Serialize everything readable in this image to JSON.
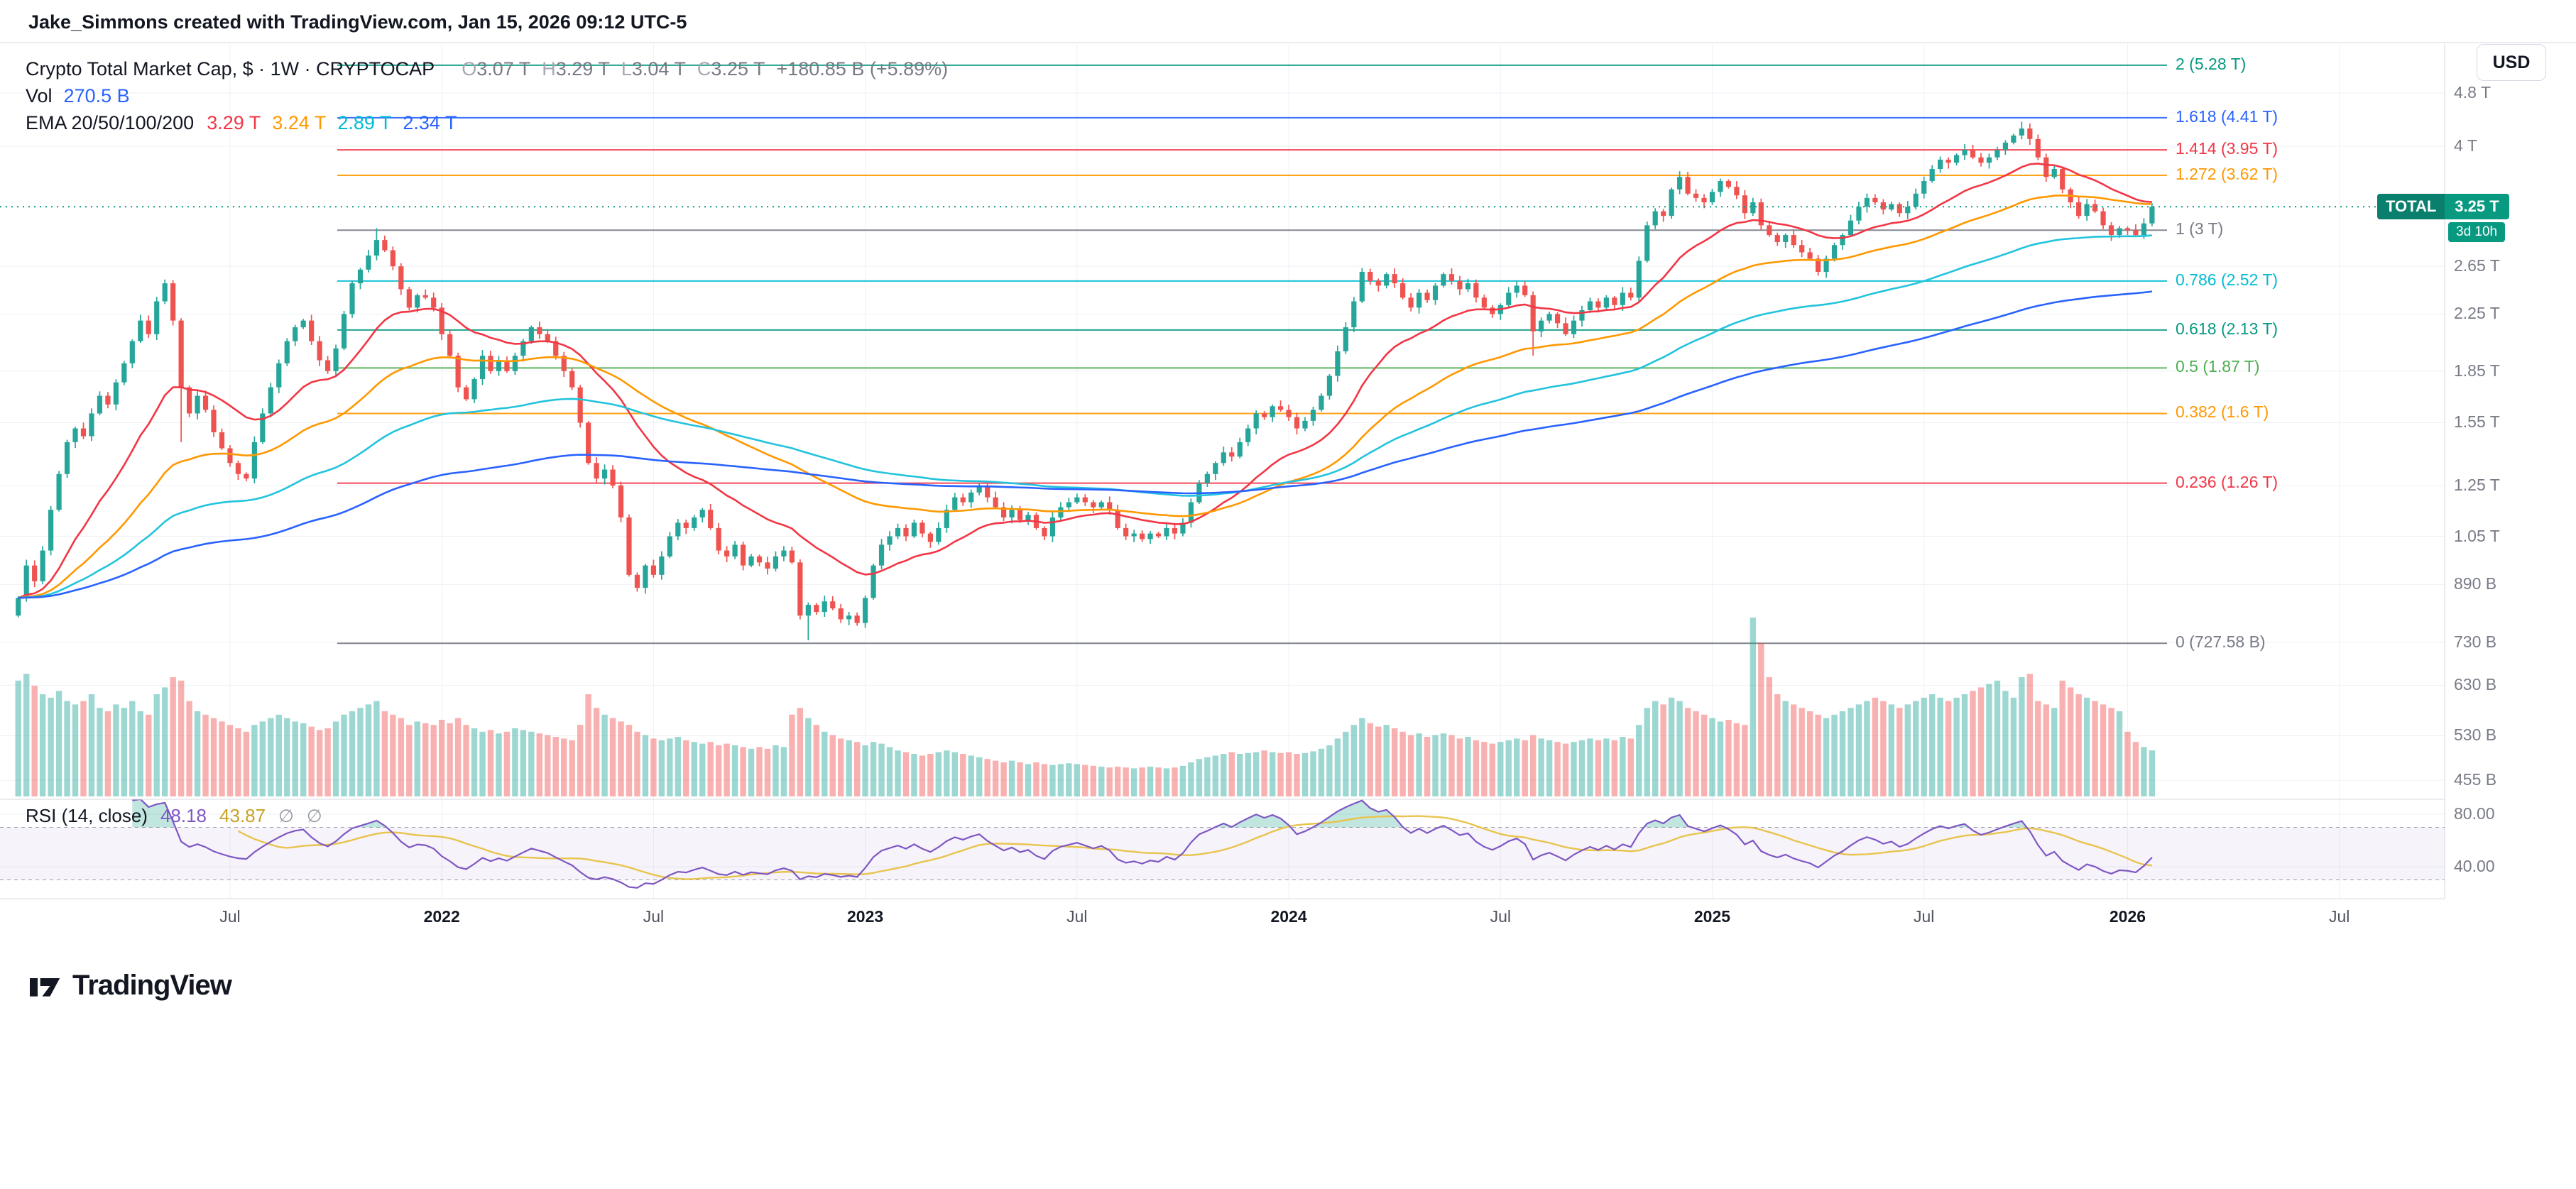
{
  "meta": {
    "attribution": "Jake_Simmons created with TradingView.com, Jan 15, 2026 09:12 UTC-5"
  },
  "legend": {
    "title": "Crypto Total Market Cap, $ · 1W · CRYPTOCAP",
    "ohlc": {
      "o_label": "O",
      "o": "3.07 T",
      "h_label": "H",
      "h": "3.29 T",
      "l_label": "L",
      "l": "3.04 T",
      "c_label": "C",
      "c": "3.25 T",
      "change": "+180.85 B (+5.89%)"
    },
    "vol_label": "Vol",
    "vol_value": "270.5 B",
    "ema_label": "EMA 20/50/100/200",
    "ema_values": [
      {
        "text": "3.29 T",
        "color": "#f23645"
      },
      {
        "text": "3.24 T",
        "color": "#ff9800"
      },
      {
        "text": "2.89 T",
        "color": "#00bcd4"
      },
      {
        "text": "2.34 T",
        "color": "#2962ff"
      }
    ]
  },
  "price_axis": {
    "currency_button": "USD",
    "ticks": [
      {
        "label": "4.8 T",
        "value": 4.8
      },
      {
        "label": "4 T",
        "value": 4.0
      },
      {
        "label": "2.65 T",
        "value": 2.65
      },
      {
        "label": "2.25 T",
        "value": 2.25
      },
      {
        "label": "1.85 T",
        "value": 1.85
      },
      {
        "label": "1.55 T",
        "value": 1.55
      },
      {
        "label": "1.25 T",
        "value": 1.25
      },
      {
        "label": "1.05 T",
        "value": 1.05
      },
      {
        "label": "890 B",
        "value": 0.89
      },
      {
        "label": "730 B",
        "value": 0.73
      },
      {
        "label": "630 B",
        "value": 0.63
      },
      {
        "label": "530 B",
        "value": 0.53
      },
      {
        "label": "455 B",
        "value": 0.455
      }
    ],
    "current": {
      "symbol_label": "TOTAL",
      "price": "3.25 T",
      "countdown": "3d 10h",
      "value": 3.25
    }
  },
  "fib_levels": [
    {
      "label": "2 (5.28 T)",
      "value": 5.28,
      "color": "#089981"
    },
    {
      "label": "1.618 (4.41 T)",
      "value": 4.41,
      "color": "#2962ff"
    },
    {
      "label": "1.414 (3.95 T)",
      "value": 3.95,
      "color": "#f23645"
    },
    {
      "label": "1.272 (3.62 T)",
      "value": 3.62,
      "color": "#ff9800"
    },
    {
      "label": "1 (3 T)",
      "value": 3.0,
      "color": "#787b86"
    },
    {
      "label": "0.786 (2.52 T)",
      "value": 2.52,
      "color": "#00bcd4"
    },
    {
      "label": "0.618 (2.13 T)",
      "value": 2.13,
      "color": "#089981"
    },
    {
      "label": "0.5 (1.87 T)",
      "value": 1.87,
      "color": "#4caf50"
    },
    {
      "label": "0.382 (1.6 T)",
      "value": 1.6,
      "color": "#ff9800"
    },
    {
      "label": "0.236 (1.26 T)",
      "value": 1.26,
      "color": "#f23645"
    },
    {
      "label": "0 (727.58 B)",
      "value": 0.72758,
      "color": "#787b86"
    }
  ],
  "time_axis": [
    {
      "label": "Jul",
      "idx": 26
    },
    {
      "label": "2022",
      "idx": 52
    },
    {
      "label": "Jul",
      "idx": 78
    },
    {
      "label": "2023",
      "idx": 104
    },
    {
      "label": "Jul",
      "idx": 130
    },
    {
      "label": "2024",
      "idx": 156
    },
    {
      "label": "Jul",
      "idx": 182
    },
    {
      "label": "2025",
      "idx": 208
    },
    {
      "label": "Jul",
      "idx": 234
    },
    {
      "label": "2026",
      "idx": 259
    },
    {
      "label": "Jul",
      "idx": 285
    }
  ],
  "rsi": {
    "title": "RSI (14, close)",
    "value": "48.18",
    "ma_value": "43.87",
    "empty": "∅",
    "value_color": "#7e57c2",
    "ma_value_color": "#c9a227",
    "ticks": [
      {
        "label": "80.00",
        "value": 80
      },
      {
        "label": "40.00",
        "value": 40
      }
    ],
    "band": [
      30,
      70
    ]
  },
  "footer": {
    "brand": "TradingView"
  },
  "colors": {
    "up": "#26a69a",
    "down": "#ef5350",
    "vol_up": "rgba(38,166,154,0.45)",
    "vol_down": "rgba(239,83,80,0.45)",
    "accent_teal": "#089981",
    "rsi": "#7e57c2",
    "rsi_ma": "#e8c44d",
    "grid": "#eef1f6",
    "separator": "#d6d9e0"
  },
  "chart_data": {
    "type": "candlestick",
    "title": "Crypto Total Market Cap (CRYPTOCAP:TOTAL), 1W, log scale, USD",
    "x_range": [
      "Jan 2021",
      "Jul 2026"
    ],
    "y_scale": "log",
    "ylim_T": [
      0.44,
      5.4
    ],
    "interval": "1W",
    "first_open_T": 0.8,
    "last_week_ohlc_T": {
      "open": 3.07,
      "high": 3.29,
      "low": 3.04,
      "close": 3.25
    },
    "weekly_closes_T": [
      0.85,
      0.95,
      0.9,
      1.0,
      1.15,
      1.3,
      1.45,
      1.52,
      1.48,
      1.6,
      1.7,
      1.65,
      1.78,
      1.9,
      2.05,
      2.2,
      2.1,
      2.35,
      2.5,
      2.2,
      1.75,
      1.6,
      1.7,
      1.62,
      1.5,
      1.42,
      1.35,
      1.3,
      1.28,
      1.45,
      1.6,
      1.75,
      1.9,
      2.05,
      2.15,
      2.2,
      2.05,
      1.92,
      1.85,
      2.0,
      2.25,
      2.5,
      2.62,
      2.75,
      2.9,
      2.8,
      2.65,
      2.45,
      2.3,
      2.4,
      2.38,
      2.3,
      2.1,
      1.95,
      1.75,
      1.68,
      1.8,
      1.95,
      1.85,
      1.92,
      1.85,
      1.95,
      2.05,
      2.15,
      2.1,
      2.05,
      1.95,
      1.85,
      1.75,
      1.55,
      1.35,
      1.28,
      1.32,
      1.25,
      1.12,
      0.92,
      0.88,
      0.95,
      0.92,
      0.98,
      1.05,
      1.1,
      1.08,
      1.12,
      1.15,
      1.08,
      1.0,
      0.98,
      1.02,
      0.95,
      0.98,
      0.96,
      0.94,
      0.98,
      1.0,
      0.96,
      0.8,
      0.83,
      0.81,
      0.84,
      0.82,
      0.79,
      0.8,
      0.78,
      0.85,
      0.95,
      1.02,
      1.05,
      1.08,
      1.05,
      1.1,
      1.06,
      1.03,
      1.08,
      1.15,
      1.2,
      1.18,
      1.22,
      1.25,
      1.2,
      1.16,
      1.12,
      1.15,
      1.11,
      1.13,
      1.08,
      1.05,
      1.12,
      1.16,
      1.18,
      1.2,
      1.18,
      1.16,
      1.18,
      1.15,
      1.08,
      1.05,
      1.06,
      1.04,
      1.06,
      1.05,
      1.08,
      1.06,
      1.1,
      1.18,
      1.26,
      1.3,
      1.35,
      1.4,
      1.38,
      1.45,
      1.52,
      1.6,
      1.58,
      1.64,
      1.62,
      1.58,
      1.52,
      1.56,
      1.62,
      1.7,
      1.82,
      1.98,
      2.15,
      2.35,
      2.6,
      2.52,
      2.48,
      2.58,
      2.5,
      2.38,
      2.3,
      2.42,
      2.36,
      2.48,
      2.58,
      2.52,
      2.45,
      2.5,
      2.38,
      2.3,
      2.25,
      2.32,
      2.42,
      2.48,
      2.4,
      2.12,
      2.2,
      2.25,
      2.18,
      2.1,
      2.2,
      2.28,
      2.35,
      2.3,
      2.38,
      2.32,
      2.42,
      2.38,
      2.7,
      3.05,
      3.2,
      3.15,
      3.45,
      3.6,
      3.4,
      3.35,
      3.3,
      3.42,
      3.55,
      3.48,
      3.38,
      3.18,
      3.3,
      3.05,
      2.95,
      2.88,
      2.95,
      2.85,
      2.78,
      2.72,
      2.6,
      2.72,
      2.85,
      2.95,
      3.1,
      3.25,
      3.35,
      3.3,
      3.22,
      3.28,
      3.18,
      3.25,
      3.4,
      3.55,
      3.7,
      3.82,
      3.78,
      3.88,
      3.95,
      3.85,
      3.78,
      3.85,
      3.95,
      4.05,
      4.15,
      4.25,
      4.1,
      3.85,
      3.6,
      3.7,
      3.45,
      3.3,
      3.15,
      3.28,
      3.2,
      3.05,
      2.95,
      3.02,
      3.0,
      2.95,
      3.07,
      3.25
    ],
    "weekly_volumes_B": [
      680,
      720,
      650,
      600,
      580,
      620,
      560,
      540,
      560,
      600,
      520,
      500,
      540,
      520,
      560,
      500,
      480,
      600,
      640,
      700,
      680,
      560,
      500,
      480,
      460,
      440,
      420,
      400,
      380,
      420,
      440,
      460,
      480,
      460,
      440,
      430,
      410,
      390,
      400,
      440,
      480,
      500,
      520,
      540,
      560,
      500,
      480,
      460,
      420,
      440,
      430,
      420,
      450,
      430,
      460,
      420,
      400,
      380,
      390,
      370,
      380,
      400,
      390,
      380,
      370,
      360,
      350,
      340,
      330,
      420,
      600,
      520,
      480,
      460,
      440,
      420,
      380,
      360,
      340,
      330,
      340,
      350,
      330,
      320,
      310,
      320,
      300,
      310,
      300,
      290,
      280,
      290,
      280,
      300,
      290,
      480,
      520,
      460,
      420,
      380,
      360,
      340,
      330,
      320,
      300,
      320,
      310,
      290,
      270,
      260,
      250,
      240,
      250,
      260,
      270,
      260,
      250,
      240,
      230,
      220,
      210,
      200,
      210,
      200,
      190,
      200,
      190,
      185,
      190,
      195,
      190,
      185,
      180,
      175,
      170,
      175,
      170,
      165,
      170,
      175,
      170,
      165,
      170,
      180,
      200,
      220,
      230,
      240,
      250,
      260,
      250,
      255,
      260,
      270,
      260,
      255,
      260,
      250,
      255,
      265,
      280,
      300,
      340,
      380,
      420,
      460,
      430,
      410,
      420,
      400,
      380,
      360,
      370,
      350,
      360,
      370,
      360,
      340,
      350,
      330,
      320,
      310,
      320,
      330,
      340,
      330,
      360,
      340,
      330,
      320,
      310,
      320,
      330,
      340,
      330,
      340,
      330,
      350,
      340,
      420,
      520,
      560,
      540,
      580,
      560,
      520,
      500,
      480,
      460,
      440,
      450,
      430,
      420,
      1050,
      900,
      700,
      600,
      560,
      540,
      520,
      500,
      480,
      460,
      480,
      500,
      520,
      540,
      560,
      580,
      560,
      540,
      520,
      540,
      560,
      580,
      600,
      580,
      560,
      580,
      600,
      620,
      640,
      660,
      680,
      620,
      580,
      700,
      720,
      560,
      540,
      520,
      680,
      640,
      600,
      580,
      560,
      540,
      520,
      500,
      380,
      320,
      290,
      270.5
    ],
    "wick_overrides": {
      "high": {
        "44": 3.02,
        "246": 4.35
      },
      "low": {
        "20": 1.45,
        "97": 0.735,
        "186": 1.95
      }
    },
    "emas": [
      {
        "period": 20,
        "color": "#f23645"
      },
      {
        "period": 50,
        "color": "#ff9800"
      },
      {
        "period": 100,
        "color": "#22c3dd"
      },
      {
        "period": 200,
        "color": "#2962ff"
      }
    ],
    "rsi": {
      "period": 14,
      "current": 48.18,
      "ma": 43.87
    },
    "volume_current_B": 270.5
  }
}
